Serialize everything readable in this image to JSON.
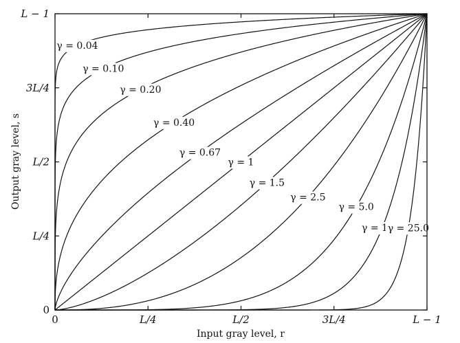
{
  "chart_data": {
    "type": "line",
    "xlabel": "Input gray level, r",
    "ylabel": "Output gray level, s",
    "xlim": [
      0,
      1
    ],
    "ylim": [
      0,
      1
    ],
    "grid": false,
    "x_ticks": [
      {
        "value": 0,
        "label": "0"
      },
      {
        "value": 0.25,
        "label": "L/4"
      },
      {
        "value": 0.5,
        "label": "L/2"
      },
      {
        "value": 0.75,
        "label": "3L/4"
      },
      {
        "value": 1,
        "label": "L − 1"
      }
    ],
    "y_ticks": [
      {
        "value": 0,
        "label": "0"
      },
      {
        "value": 0.25,
        "label": "L/4"
      },
      {
        "value": 0.5,
        "label": "L/2"
      },
      {
        "value": 0.75,
        "label": "3L/4"
      },
      {
        "value": 1,
        "label": "L − 1"
      }
    ],
    "formula": "s = r^γ",
    "series": [
      {
        "gamma": 0.04,
        "label": "γ = 0.04",
        "label_at_r": 0.06
      },
      {
        "gamma": 0.1,
        "label": "γ = 0.10",
        "label_at_r": 0.13
      },
      {
        "gamma": 0.2,
        "label": "γ = 0.20",
        "label_at_r": 0.23
      },
      {
        "gamma": 0.4,
        "label": "γ = 0.40",
        "label_at_r": 0.32
      },
      {
        "gamma": 0.67,
        "label": "γ = 0.67",
        "label_at_r": 0.39
      },
      {
        "gamma": 1,
        "label": "γ = 1",
        "label_at_r": 0.5
      },
      {
        "gamma": 1.5,
        "label": "γ = 1.5",
        "label_at_r": 0.57
      },
      {
        "gamma": 2.5,
        "label": "γ = 2.5",
        "label_at_r": 0.68
      },
      {
        "gamma": 5.0,
        "label": "γ = 5.0",
        "label_at_r": 0.81
      },
      {
        "gamma": 10.0,
        "label": "γ = 10.0",
        "label_at_r": 0.88
      },
      {
        "gamma": 25.0,
        "label": "γ = 25.0",
        "label_at_r": 0.95
      }
    ]
  }
}
